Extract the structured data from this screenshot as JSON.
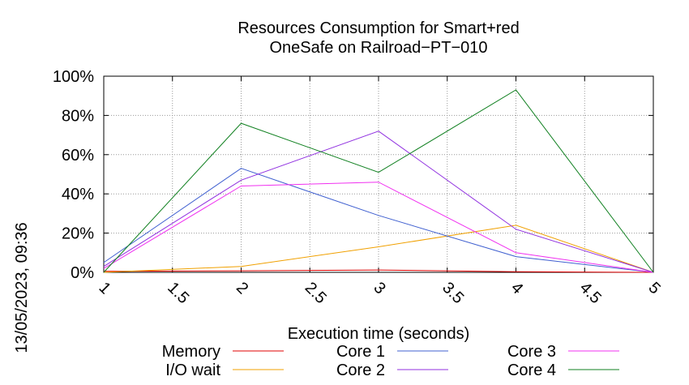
{
  "chart_data": {
    "type": "line",
    "title_line1": "Resources Consumption for Smart+red",
    "title_line2": "OneSafe on Railroad−PT−010",
    "xlabel": "Execution time (seconds)",
    "ylabel": "",
    "side_label": "13/05/2023, 09:36",
    "x_ticks": [
      "1",
      "1.5",
      "2",
      "2.5",
      "3",
      "3.5",
      "4",
      "4.5",
      "5"
    ],
    "y_ticks": [
      "0%",
      "20%",
      "40%",
      "60%",
      "80%",
      "100%"
    ],
    "xlim": [
      1,
      5
    ],
    "ylim": [
      0,
      100
    ],
    "grid": true,
    "legend_position": "bottom",
    "x": [
      1,
      2,
      3,
      4,
      5
    ],
    "series": [
      {
        "name": "Memory",
        "color": "#e00000",
        "values": [
          0.5,
          0.8,
          1.2,
          0.3,
          0
        ]
      },
      {
        "name": "I/O wait",
        "color": "#f0a000",
        "values": [
          0,
          3,
          13,
          24,
          0
        ]
      },
      {
        "name": "Core 1",
        "color": "#4060d0",
        "values": [
          5,
          53,
          29,
          8,
          0
        ]
      },
      {
        "name": "Core 2",
        "color": "#9030e0",
        "values": [
          3,
          47,
          72,
          22,
          0
        ]
      },
      {
        "name": "Core 3",
        "color": "#f030f0",
        "values": [
          2,
          44,
          46,
          10,
          0
        ]
      },
      {
        "name": "Core 4",
        "color": "#108020",
        "values": [
          0,
          76,
          51,
          93,
          0
        ]
      }
    ]
  }
}
